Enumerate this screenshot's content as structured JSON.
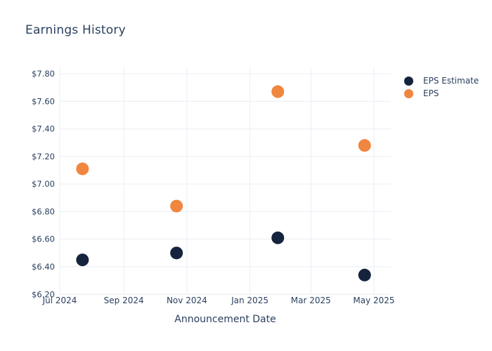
{
  "chart_data": {
    "type": "scatter",
    "title": "Earnings History",
    "xlabel": "Announcement Date",
    "ylabel": "",
    "x": [
      "2024-07-23",
      "2024-10-22",
      "2025-01-28",
      "2025-04-22"
    ],
    "series": [
      {
        "name": "EPS Estimate",
        "color": "#15243c",
        "values": [
          6.45,
          6.5,
          6.61,
          6.34
        ]
      },
      {
        "name": "EPS",
        "color": "#f0863f",
        "values": [
          7.11,
          6.84,
          7.67,
          7.28
        ]
      }
    ],
    "x_ticks": [
      {
        "label": "Jul 2024",
        "date": "2024-07-01"
      },
      {
        "label": "Sep 2024",
        "date": "2024-09-01"
      },
      {
        "label": "Nov 2024",
        "date": "2024-11-01"
      },
      {
        "label": "Jan 2025",
        "date": "2025-01-01"
      },
      {
        "label": "Mar 2025",
        "date": "2025-03-01"
      },
      {
        "label": "May 2025",
        "date": "2025-05-01"
      }
    ],
    "y_ticks": [
      {
        "label": "$6.20",
        "value": 6.2
      },
      {
        "label": "$6.40",
        "value": 6.4
      },
      {
        "label": "$6.60",
        "value": 6.6
      },
      {
        "label": "$6.80",
        "value": 6.8
      },
      {
        "label": "$7.00",
        "value": 7.0
      },
      {
        "label": "$7.20",
        "value": 7.2
      },
      {
        "label": "$7.40",
        "value": 7.4
      },
      {
        "label": "$7.60",
        "value": 7.6
      },
      {
        "label": "$7.80",
        "value": 7.8
      }
    ],
    "ylim": [
      6.2,
      7.8
    ],
    "xlim": [
      "2024-06-30",
      "2025-05-17"
    ],
    "grid": true,
    "legend_position": "right-top",
    "marker_diameter_px": 18,
    "colors": {
      "text": "#2a3f5f",
      "grid": "#e9edf4",
      "background": "#ffffff"
    }
  }
}
